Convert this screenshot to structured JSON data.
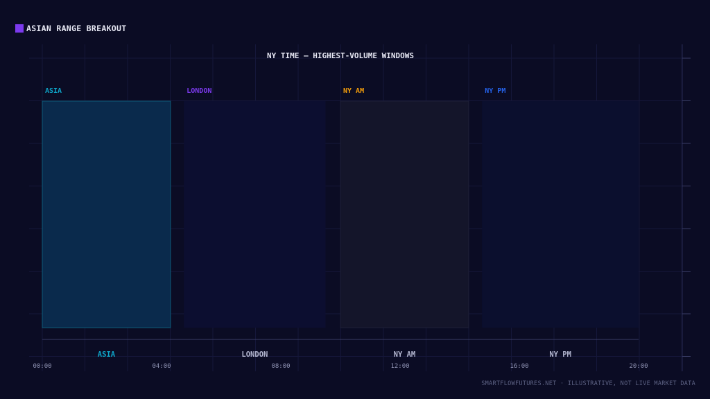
{
  "badge": {
    "label": "ASIAN RANGE BREAKOUT",
    "color": "#7c3aed"
  },
  "footer": {
    "text": "SMARTFLOWFUTURES.NET · ILLUSTRATIVE, NOT LIVE MARKET DATA"
  },
  "chart_data": {
    "type": "bar",
    "title": "NY TIME — HIGHEST-VOLUME WINDOWS",
    "xlabel": "",
    "ylabel": "",
    "x_unit": "hours",
    "xlim": [
      0,
      20
    ],
    "x_ticks": [
      {
        "value": 0,
        "label": "00:00"
      },
      {
        "value": 4,
        "label": "04:00"
      },
      {
        "value": 8,
        "label": "08:00"
      },
      {
        "value": 12,
        "label": "12:00"
      },
      {
        "value": 16,
        "label": "16:00"
      },
      {
        "value": 20,
        "label": "20:00"
      }
    ],
    "grid": true,
    "sessions": [
      {
        "name": "ASIA",
        "start": 0,
        "end": 4.3,
        "highlighted": true,
        "color": "#0ea5c9",
        "fill": "#0a2a4c",
        "stroke": "#0e5a78",
        "axis_label_color": "#0ea5c9"
      },
      {
        "name": "LONDON",
        "start": 4.75,
        "end": 9.5,
        "highlighted": false,
        "color": "#7c3aed",
        "fill": "#0c0e30",
        "stroke": "none",
        "axis_label_color": "#b3b6d0"
      },
      {
        "name": "NY AM",
        "start": 10,
        "end": 14.3,
        "highlighted": false,
        "color": "#f59e0b",
        "fill": "#14152a",
        "stroke": "#1e2038",
        "axis_label_color": "#b3b6d0"
      },
      {
        "name": "NY PM",
        "start": 14.75,
        "end": 20,
        "highlighted": false,
        "color": "#2563eb",
        "fill": "#0b0f2e",
        "stroke": "none",
        "axis_label_color": "#b3b6d0"
      }
    ]
  }
}
